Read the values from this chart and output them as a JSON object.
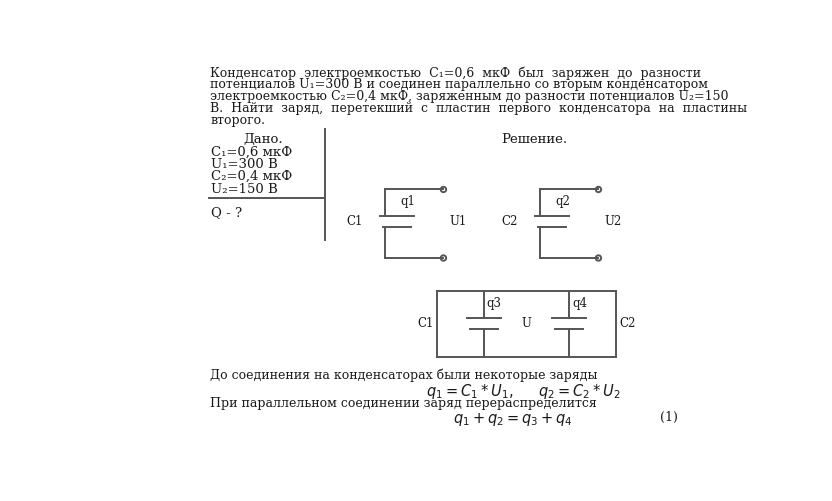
{
  "bg_color": "#ffffff",
  "text_color": "#1a1a1a",
  "line_color": "#555555",
  "line_width": 1.4,
  "font_size": 9.0,
  "title_lines": [
    "Конденсатор  электроемкостью  С₁=0,6  мкФ  был  заряжен  до  разности",
    "потенциалов U₁=300 В и соединен параллельно со вторым конденсатором",
    "электроемкостью С₂=0,4 мкФ, заряженным до разности потенциалов U₂=150",
    "В.  Найти  заряд,  перетекший  с  пластин  первого  конденсатора  на  пластины",
    "второго."
  ],
  "dado_title": "Дано.",
  "dado_lines": [
    "С₁=0,6 мкФ",
    "U₁=300 В",
    "С₂=0,4 мкФ",
    "U₂=150 В"
  ],
  "question": "Q - ?",
  "reshenie_title": "Решение.",
  "bottom_text1": "До соединения на конденсаторах были некоторые заряды",
  "bottom_text2": "При параллельном соединении заряд перераспределится",
  "eq_num": "(1)"
}
